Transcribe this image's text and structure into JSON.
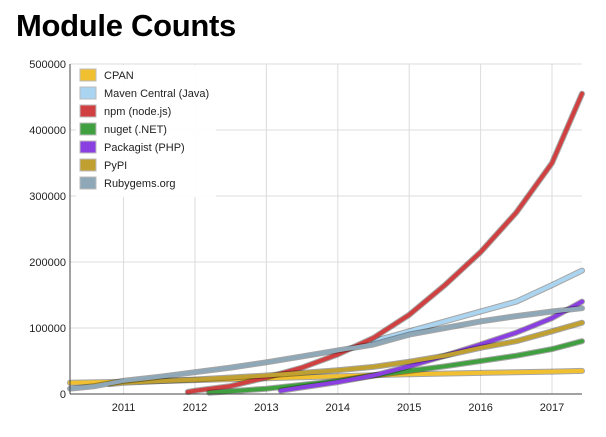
{
  "title": "Module Counts",
  "chart_data": {
    "type": "line",
    "title": "Module Counts",
    "xlabel": "",
    "ylabel": "",
    "xlim": [
      2010.25,
      2017.42
    ],
    "ylim": [
      0,
      500000
    ],
    "x_ticks": [
      "2011",
      "2012",
      "2013",
      "2014",
      "2015",
      "2016",
      "2017"
    ],
    "y_ticks": [
      "0",
      "100000",
      "200000",
      "300000",
      "400000",
      "500000"
    ],
    "grid": true,
    "legend_position": "top-left",
    "series": [
      {
        "name": "CPAN",
        "color": "#f0c030",
        "x": [
          2010.25,
          2011,
          2012,
          2013,
          2014,
          2015,
          2016,
          2017,
          2017.42
        ],
        "y": [
          17000,
          18500,
          21000,
          24000,
          27000,
          30000,
          32000,
          34000,
          35000
        ]
      },
      {
        "name": "Maven Central (Java)",
        "color": "#aad4f0",
        "x": [
          2014.5,
          2015,
          2015.5,
          2016,
          2016.5,
          2017,
          2017.42
        ],
        "y": [
          80000,
          95000,
          110000,
          125000,
          140000,
          165000,
          187000
        ]
      },
      {
        "name": "npm (node.js)",
        "color": "#d04040",
        "x": [
          2011.9,
          2012,
          2012.5,
          2013,
          2013.5,
          2014,
          2014.5,
          2015,
          2015.5,
          2016,
          2016.5,
          2017,
          2017.42
        ],
        "y": [
          3000,
          5000,
          12000,
          25000,
          40000,
          60000,
          85000,
          120000,
          165000,
          215000,
          275000,
          350000,
          455000
        ]
      },
      {
        "name": "nuget (.NET)",
        "color": "#40a040",
        "x": [
          2012.2,
          2013,
          2013.5,
          2014,
          2014.5,
          2015,
          2015.5,
          2016,
          2016.5,
          2017,
          2017.42
        ],
        "y": [
          2000,
          8000,
          14000,
          20000,
          28000,
          35000,
          42000,
          50000,
          58000,
          68000,
          80000
        ]
      },
      {
        "name": "Packagist (PHP)",
        "color": "#8a40e0",
        "x": [
          2013.2,
          2013.5,
          2014,
          2014.5,
          2015,
          2015.5,
          2016,
          2016.5,
          2017,
          2017.42
        ],
        "y": [
          5000,
          10000,
          18000,
          28000,
          42000,
          58000,
          75000,
          93000,
          115000,
          140000
        ]
      },
      {
        "name": "PyPI",
        "color": "#c0a030",
        "x": [
          2010.8,
          2011,
          2011.5,
          2012,
          2012.5,
          2013,
          2013.5,
          2014,
          2014.5,
          2015,
          2015.5,
          2016,
          2016.5,
          2017,
          2017.42
        ],
        "y": [
          15000,
          17000,
          19500,
          22000,
          25000,
          28000,
          32000,
          36000,
          41000,
          49000,
          58000,
          70000,
          80000,
          95000,
          108000
        ]
      },
      {
        "name": "Rubygems.org",
        "color": "#8fa8b8",
        "x": [
          2010.25,
          2010.6,
          2011,
          2011.5,
          2012,
          2012.5,
          2013,
          2013.5,
          2014,
          2014.5,
          2015,
          2015.5,
          2016,
          2016.5,
          2017,
          2017.42
        ],
        "y": [
          8000,
          12000,
          20000,
          26000,
          33000,
          40000,
          48000,
          57000,
          66000,
          75000,
          90000,
          100000,
          110000,
          118000,
          125000,
          130000
        ]
      }
    ]
  }
}
